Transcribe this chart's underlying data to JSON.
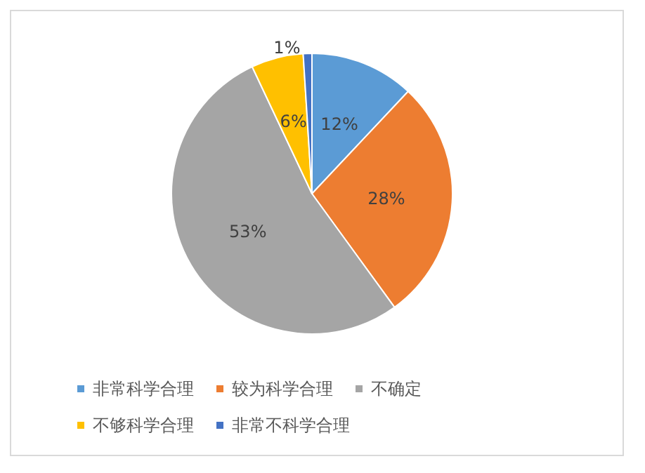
{
  "chart_data": {
    "type": "pie",
    "categories": [
      "非常科学合理",
      "较为科学合理",
      "不确定",
      "不够科学合理",
      "非常不科学合理"
    ],
    "values": [
      12,
      28,
      53,
      6,
      1
    ],
    "colors": [
      "#5b9bd5",
      "#ed7d31",
      "#a5a5a5",
      "#ffc000",
      "#4472c4"
    ],
    "value_labels": [
      "12%",
      "28%",
      "53%",
      "6%",
      "1%"
    ],
    "legend": "bottom"
  }
}
